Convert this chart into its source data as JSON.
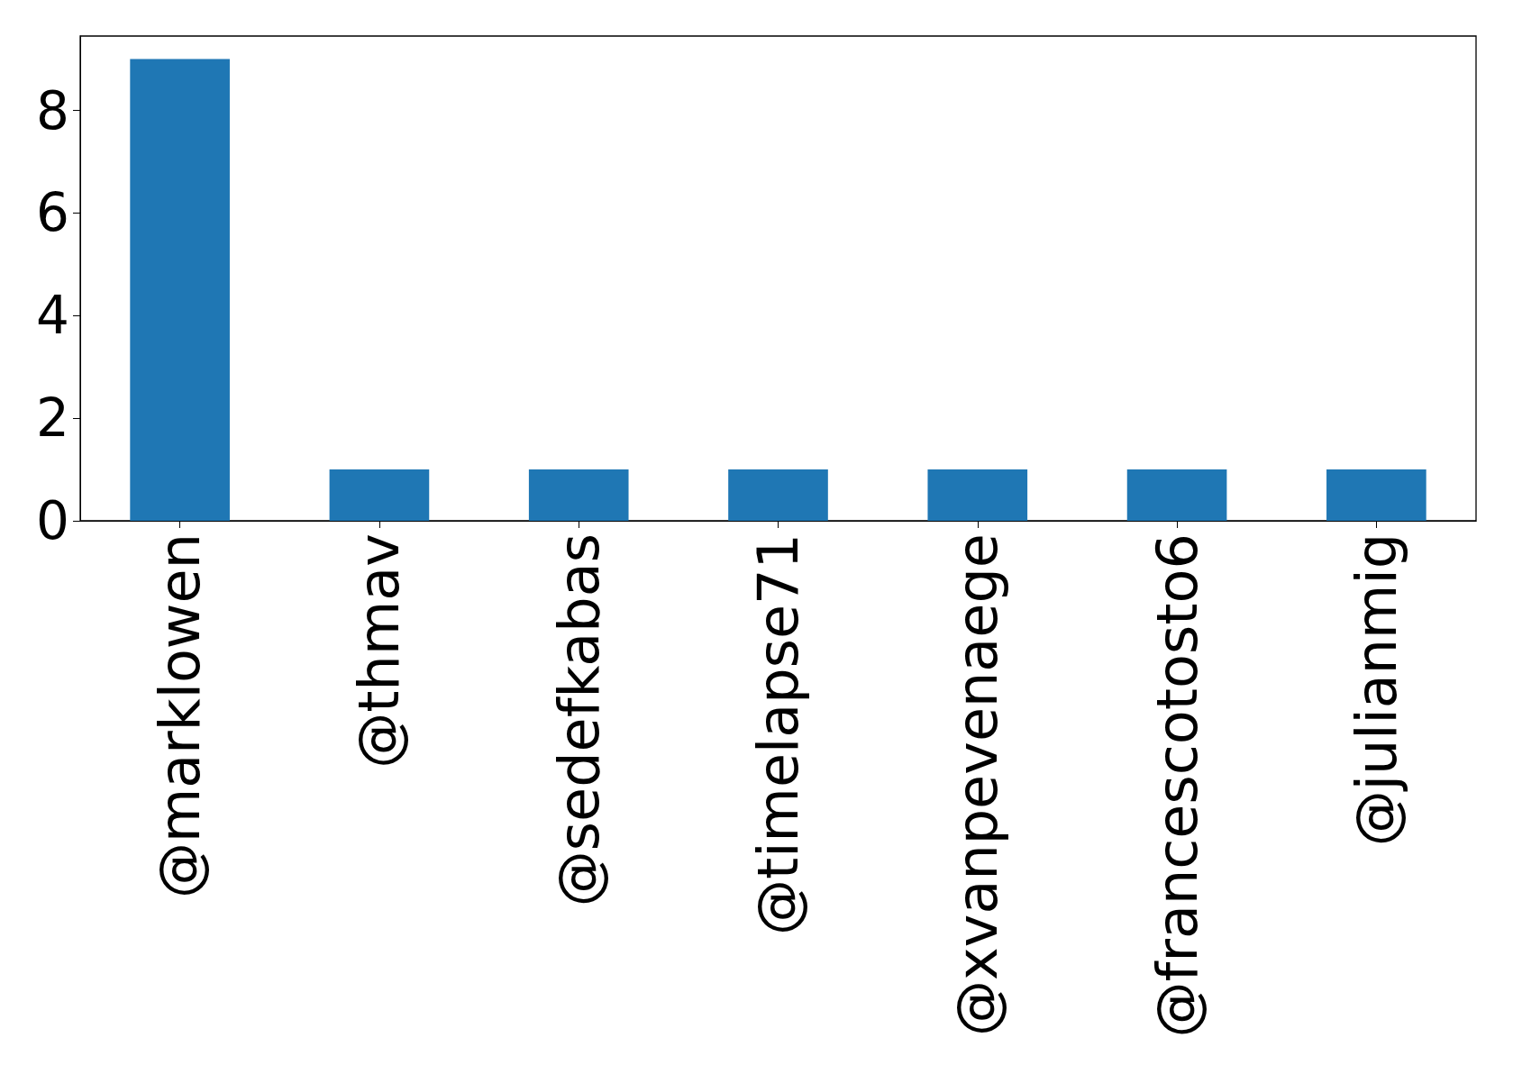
{
  "chart_data": {
    "type": "bar",
    "categories": [
      "@marklowen",
      "@thmav",
      "@sedefkabas",
      "@timelapse71",
      "@xvanpevenaege",
      "@francescotosto6",
      "@julianmig"
    ],
    "values": [
      9,
      1,
      1,
      1,
      1,
      1,
      1
    ],
    "color": "#1f77b4",
    "ylim": [
      0,
      9.45
    ],
    "yticks": [
      0,
      2,
      4,
      6,
      8
    ]
  }
}
